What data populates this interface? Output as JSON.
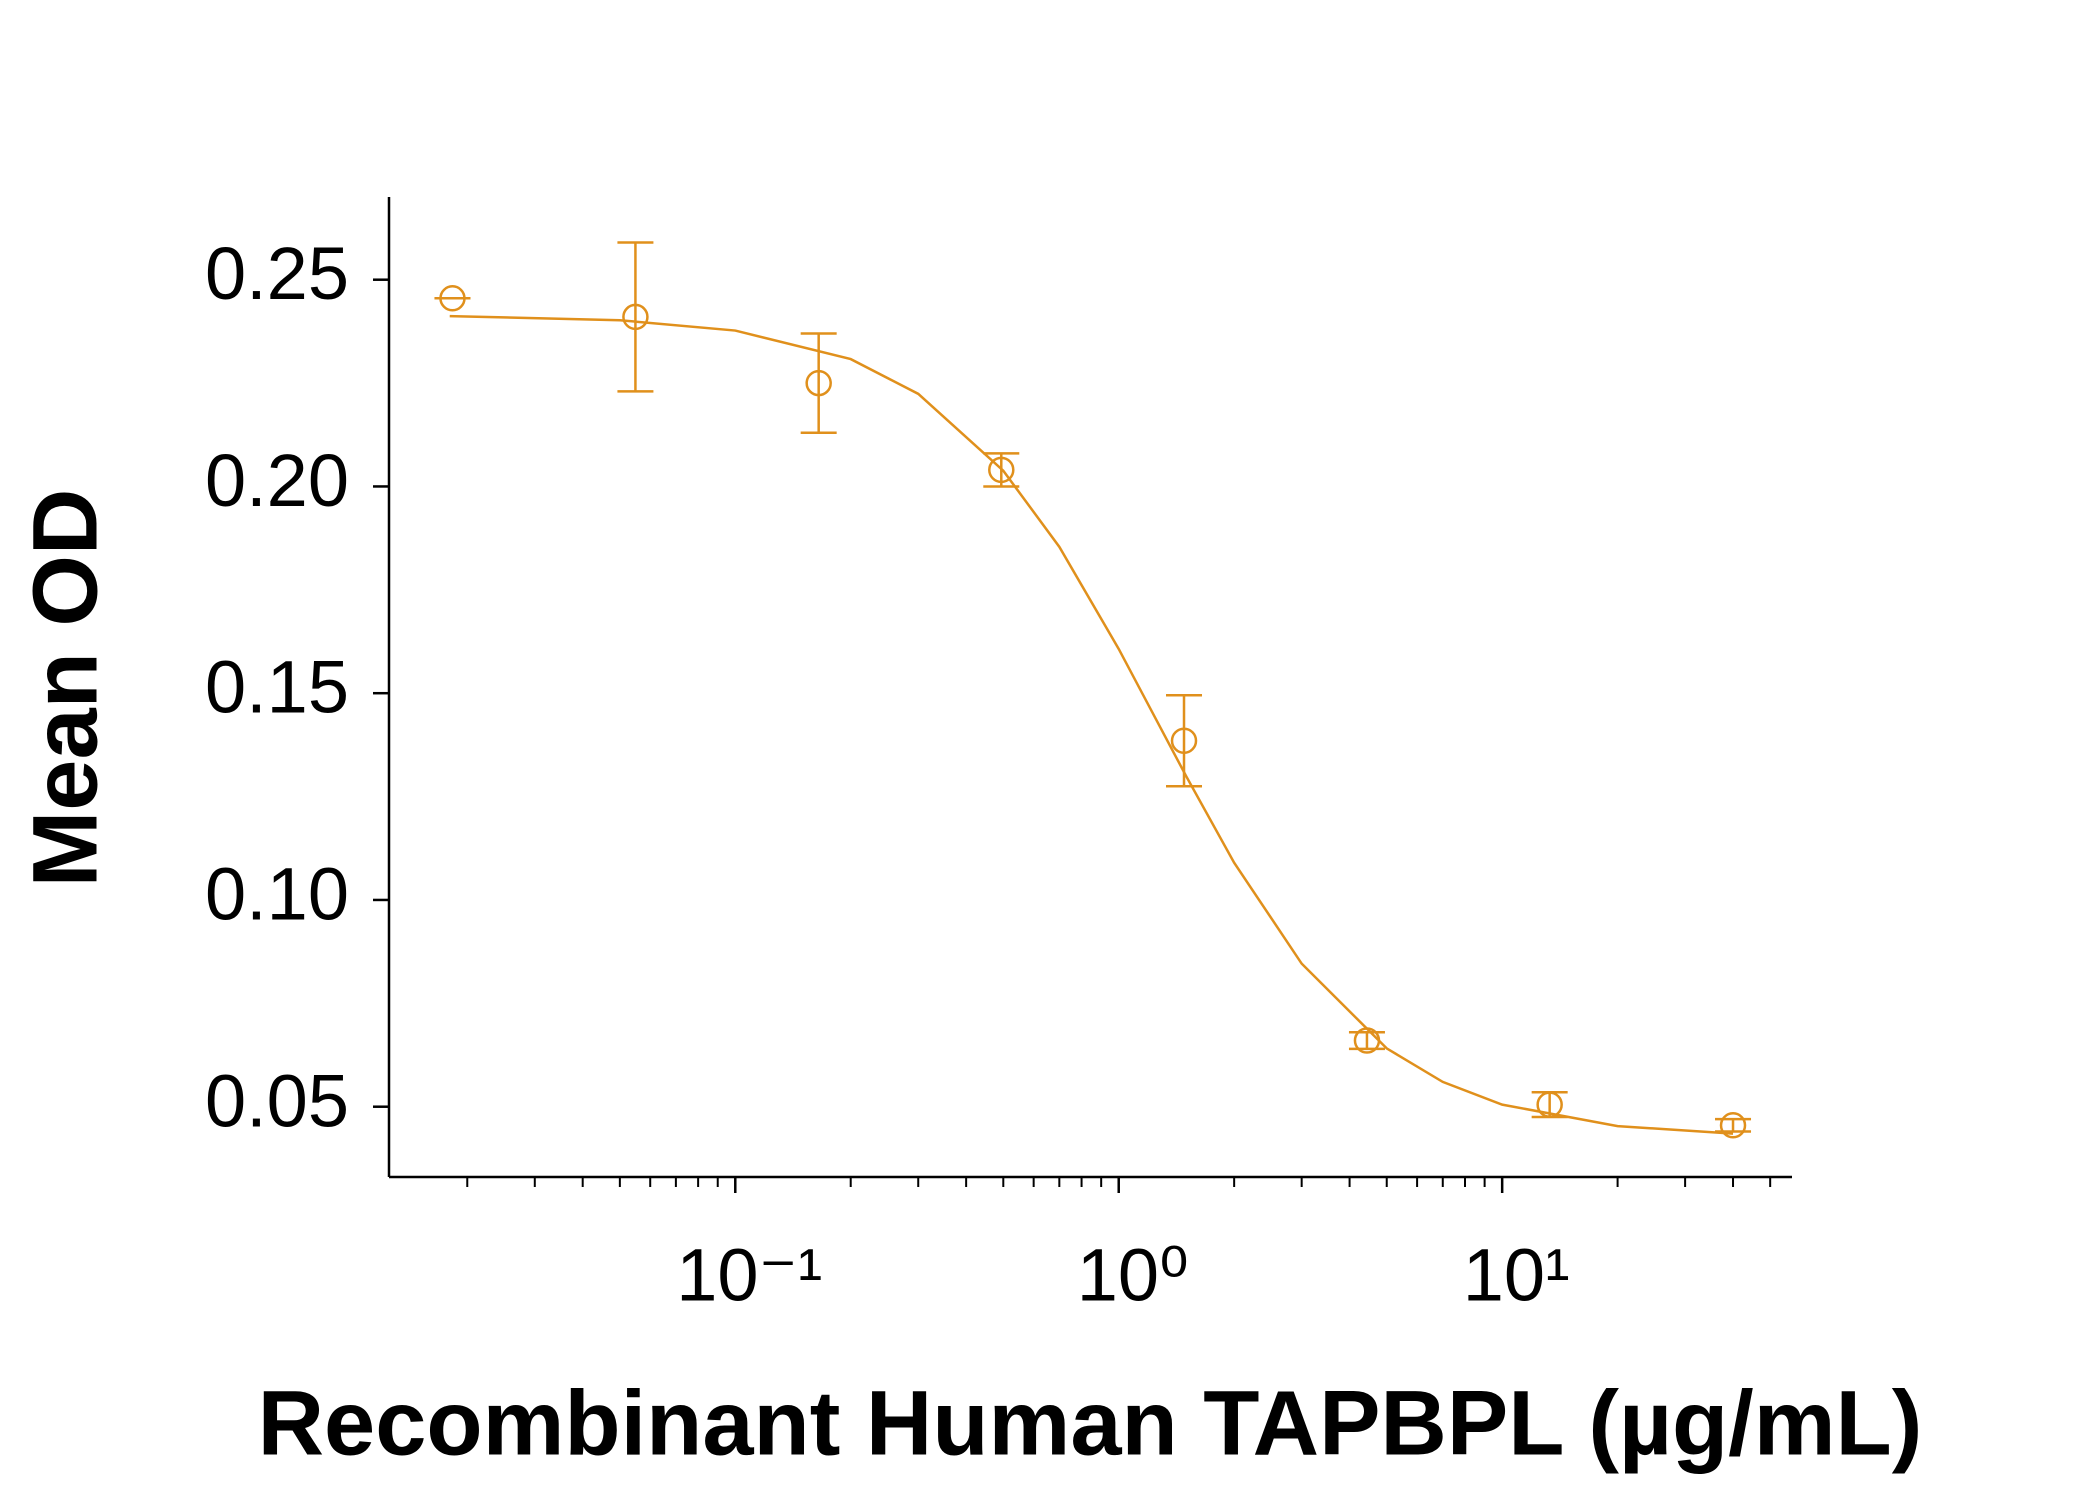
{
  "chart_data": {
    "type": "scatter",
    "x_label": "Recombinant Human TAPBPL (µg/mL)",
    "y_label": "Mean OD",
    "xscale": "log",
    "xlim": [
      0.0125,
      57
    ],
    "ylim": [
      0.033,
      0.27
    ],
    "xticks": [
      {
        "value": 0.1,
        "label": "10⁻¹"
      },
      {
        "value": 1,
        "label": "10⁰"
      },
      {
        "value": 10,
        "label": "10¹"
      }
    ],
    "xminor_ticks": [
      0.02,
      0.03,
      0.04,
      0.05,
      0.06,
      0.07,
      0.08,
      0.09,
      0.2,
      0.3,
      0.4,
      0.5,
      0.6,
      0.7,
      0.8,
      0.9,
      2,
      3,
      4,
      5,
      6,
      7,
      8,
      9,
      20,
      30,
      40,
      50
    ],
    "yticks": [
      0.05,
      {
        "value": 0.1,
        "label": "0.10"
      },
      0.15,
      {
        "value": 0.2,
        "label": "0.20"
      },
      0.25
    ],
    "series": [
      {
        "color": "#e0901c",
        "marker": "circle",
        "x": [
          0.0183,
          0.0549,
          0.165,
          0.494,
          1.48,
          4.44,
          13.3,
          40
        ],
        "values": [
          0.2455,
          0.241,
          0.225,
          0.204,
          0.1385,
          0.066,
          0.0505,
          0.0455
        ],
        "errors": [
          0,
          0.018,
          0.012,
          0.004,
          0.011,
          0.002,
          0.003,
          0.0015
        ]
      },
      {
        "color": "#e0901c",
        "style": "line",
        "x": [
          0.018,
          0.05,
          0.1,
          0.2,
          0.3,
          0.5,
          0.7,
          1,
          1.5,
          2,
          3,
          5,
          7,
          10,
          20,
          40
        ],
        "values": [
          0.2412,
          0.2402,
          0.2377,
          0.2308,
          0.2224,
          0.2038,
          0.1854,
          0.1607,
          0.1299,
          0.109,
          0.0846,
          0.0641,
          0.056,
          0.0505,
          0.0453,
          0.0435
        ]
      }
    ]
  }
}
